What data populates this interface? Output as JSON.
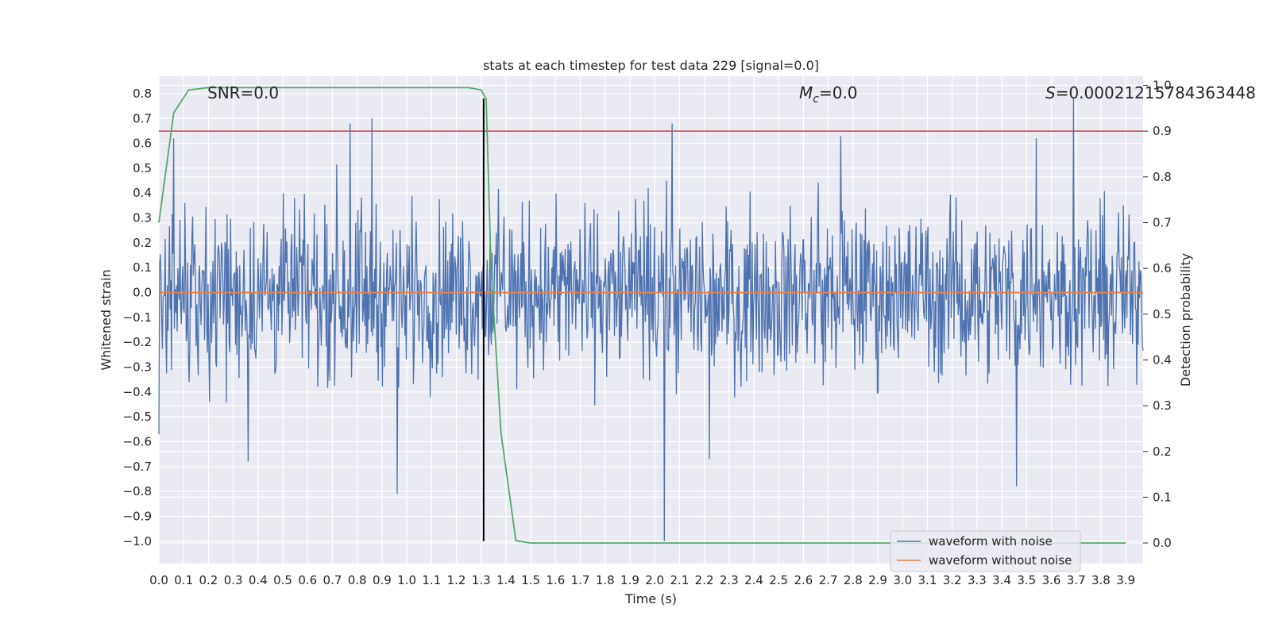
{
  "chart_data": {
    "type": "line",
    "title": "stats at each timestep for test data 229 [signal=0.0]",
    "xlabel": "Time (s)",
    "ylabel_left": "Whitened strain",
    "ylabel_right": "Detection probability",
    "xlim": [
      0.0,
      3.97
    ],
    "ylim_left": [
      -1.09,
      0.87
    ],
    "ylim_right": [
      -0.045,
      1.02
    ],
    "x_ticks": [
      "0.0",
      "0.1",
      "0.2",
      "0.3",
      "0.4",
      "0.5",
      "0.6",
      "0.7",
      "0.8",
      "0.9",
      "1.0",
      "1.1",
      "1.2",
      "1.3",
      "1.4",
      "1.5",
      "1.6",
      "1.7",
      "1.8",
      "1.9",
      "2.0",
      "2.1",
      "2.2",
      "2.3",
      "2.4",
      "2.5",
      "2.6",
      "2.7",
      "2.8",
      "2.9",
      "3.0",
      "3.1",
      "3.2",
      "3.3",
      "3.4",
      "3.5",
      "3.6",
      "3.7",
      "3.8",
      "3.9"
    ],
    "y_ticks_left": [
      "0.8",
      "0.7",
      "0.6",
      "0.5",
      "0.4",
      "0.3",
      "0.2",
      "0.1",
      "0.0",
      "−0.1",
      "−0.2",
      "−0.3",
      "−0.4",
      "−0.5",
      "−0.6",
      "−0.7",
      "−0.8",
      "−0.9",
      "−1.0"
    ],
    "y_ticks_right": [
      "1.0",
      "0.9",
      "0.8",
      "0.7",
      "0.6",
      "0.5",
      "0.4",
      "0.3",
      "0.2",
      "0.1",
      "0.0"
    ],
    "grid": true,
    "legend_position": "lower-right",
    "annotations": {
      "snr": "SNR=0.0",
      "mc_symbol": "M",
      "mc_sub": "c",
      "mc_value": "=0.0",
      "s_symbol": "S",
      "s_value": "=0.00021215784363448"
    },
    "series": [
      {
        "name": "waveform with noise",
        "color": "#4c72b0",
        "axis": "left",
        "noise_envelope": [
          -0.45,
          0.45
        ],
        "notable_peaks": [
          [
            0.06,
            0.62
          ],
          [
            0.77,
            0.68
          ],
          [
            0.86,
            0.7
          ],
          [
            2.07,
            0.68
          ],
          [
            3.69,
            0.78
          ],
          [
            3.54,
            0.62
          ],
          [
            2.75,
            0.63
          ]
        ],
        "notable_troughs": [
          [
            0.36,
            -0.68
          ],
          [
            0.96,
            -0.81
          ],
          [
            2.04,
            -1.0
          ],
          [
            3.46,
            -0.78
          ],
          [
            0.0,
            -0.57
          ],
          [
            2.22,
            -0.67
          ]
        ]
      },
      {
        "name": "waveform without noise",
        "color": "#dd8452",
        "axis": "left",
        "x": [
          0.0,
          3.97
        ],
        "y": [
          0.0,
          0.0
        ]
      },
      {
        "name": "detection probability",
        "color": "#55a868",
        "axis": "right",
        "x": [
          0.0,
          0.06,
          0.12,
          0.2,
          0.5,
          1.0,
          1.25,
          1.3,
          1.32,
          1.34,
          1.38,
          1.44,
          1.5,
          2.0,
          3.0,
          3.9
        ],
        "y": [
          0.7,
          0.94,
          0.99,
          0.995,
          0.995,
          0.995,
          0.995,
          0.99,
          0.97,
          0.6,
          0.24,
          0.005,
          0.0,
          0.0,
          0.0,
          0.0
        ]
      }
    ],
    "reference_lines": [
      {
        "kind": "horizontal",
        "axis": "right",
        "value": 0.9,
        "color": "#c44e52"
      },
      {
        "kind": "vertical",
        "value": 1.31,
        "color": "#000000",
        "y_range_left": [
          -1.0,
          0.78
        ]
      }
    ]
  }
}
